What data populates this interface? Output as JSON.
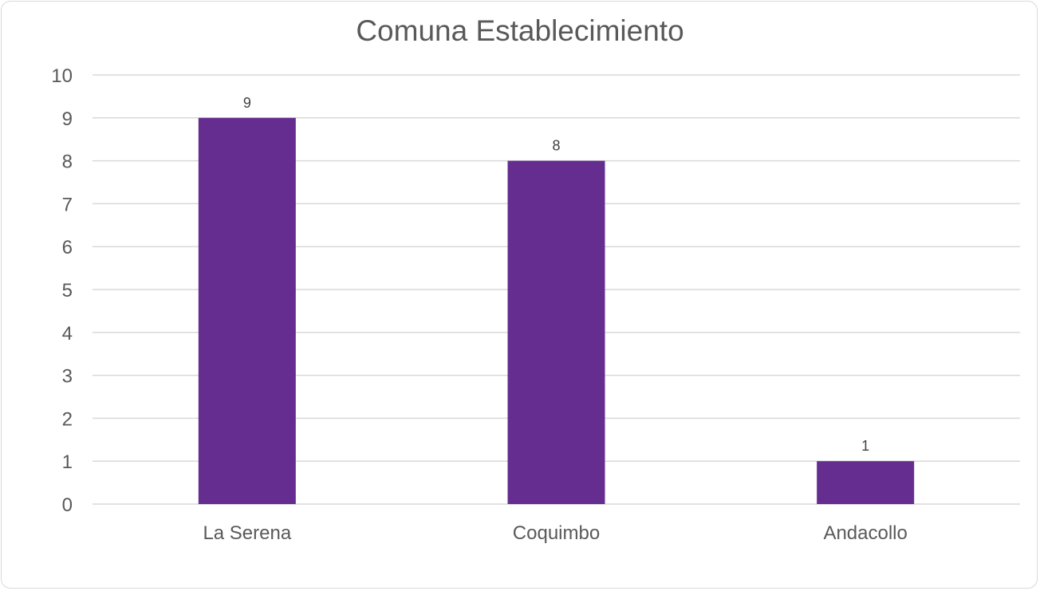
{
  "chart_data": {
    "type": "bar",
    "title": "Comuna Establecimiento",
    "categories": [
      "La Serena",
      "Coquimbo",
      "Andacollo"
    ],
    "values": [
      9,
      8,
      1
    ],
    "data_labels": [
      "9",
      "8",
      "1"
    ],
    "ylim": [
      0,
      10
    ],
    "yticks": [
      "0",
      "1",
      "2",
      "3",
      "4",
      "5",
      "6",
      "7",
      "8",
      "9",
      "10"
    ],
    "grid": true,
    "legend": "none",
    "colors": {
      "bar": "#652D90",
      "grid": "#D9D9D9",
      "text": "#595959"
    }
  }
}
